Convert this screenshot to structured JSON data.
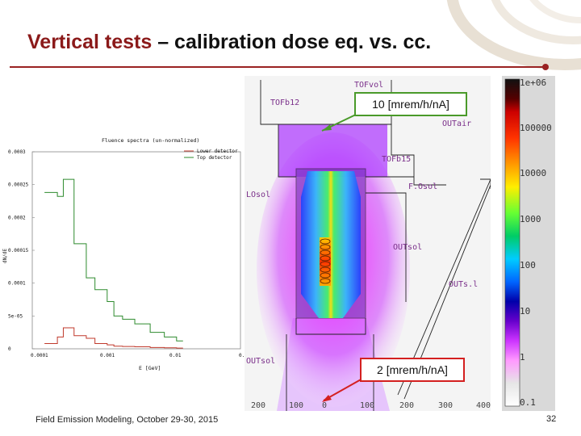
{
  "slide": {
    "title_accent": "Vertical tests",
    "title_rest": " – calibration dose eq. vs. cc.",
    "footer": "Field Emission Modeling, October 29-30, 2015",
    "page_number": "32",
    "accent_color": "#8b1a1a"
  },
  "callouts": {
    "top": "10 [mrem/h/nA]",
    "bottom": "2 [mrem/h/nA]"
  },
  "geometry_labels": {
    "l1": "TOFvol",
    "l2": "TOFb12",
    "l3": "OUTair",
    "l4": "TOFb15",
    "l5": "LOsol",
    "l6": "F.Osol",
    "l7": "OUTsol",
    "l8": "OUTs.l",
    "l9": "OUTsol",
    "ticks": [
      "200",
      "100",
      "0",
      "100",
      "200",
      "300",
      "400"
    ]
  },
  "colorbar": {
    "labels": [
      "1e+06",
      "100000",
      "10000",
      "1000",
      "100",
      "10",
      "1",
      "0.1"
    ]
  },
  "chart_data": {
    "type": "line",
    "title": "Fluence spectra (un-normalized)",
    "xlabel": "E [GeV]",
    "ylabel": "dN/dE",
    "xscale": "log",
    "xlim": [
      0.0001,
      0.1
    ],
    "ylim": [
      0,
      0.0003
    ],
    "x_tick_labels": [
      "0.0001",
      "0.001",
      "0.01",
      "0.1"
    ],
    "y_tick_labels": [
      "0.0003",
      "0.00025",
      "0.0002",
      "0.00015",
      "0.0001",
      "5e-05",
      "0"
    ],
    "legend_position": "top-right",
    "series": [
      {
        "name": "Lower detector",
        "color": "#c0392b",
        "points": [
          [
            0.00015,
            8e-06
          ],
          [
            0.00023,
            1.8e-05
          ],
          [
            0.00028,
            3.2e-05
          ],
          [
            0.0004,
            2e-05
          ],
          [
            0.0006,
            1.6e-05
          ],
          [
            0.0008,
            8e-06
          ],
          [
            0.0012,
            6e-06
          ],
          [
            0.0015,
            4e-06
          ],
          [
            0.002,
            3.5e-06
          ],
          [
            0.003,
            3e-06
          ],
          [
            0.005,
            2e-06
          ],
          [
            0.008,
            1.5e-06
          ],
          [
            0.012,
            1e-06
          ]
        ]
      },
      {
        "name": "Top detector",
        "color": "#2e8b2e",
        "points": [
          [
            0.00015,
            0.000238
          ],
          [
            0.00023,
            0.000232
          ],
          [
            0.00028,
            0.000258
          ],
          [
            0.0004,
            0.00016
          ],
          [
            0.0006,
            0.000108
          ],
          [
            0.0008,
            9e-05
          ],
          [
            0.0012,
            7.2e-05
          ],
          [
            0.0015,
            5e-05
          ],
          [
            0.002,
            4.5e-05
          ],
          [
            0.003,
            3.8e-05
          ],
          [
            0.005,
            2.5e-05
          ],
          [
            0.008,
            1.8e-05
          ],
          [
            0.012,
            1.2e-05
          ]
        ]
      }
    ]
  }
}
